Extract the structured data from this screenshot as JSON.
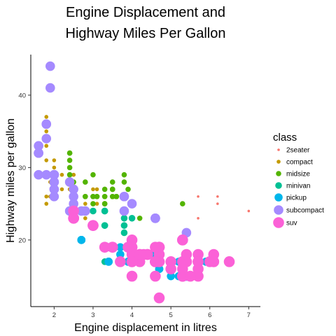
{
  "chart_data": {
    "type": "scatter",
    "title_lines": [
      "Engine Displacement and",
      "Highway Miles Per Gallon"
    ],
    "xlabel": "Engine displacement in litres",
    "ylabel": "Highway miles per gallon",
    "xlim": [
      1.4,
      7.3
    ],
    "ylim": [
      10.8,
      45.6
    ],
    "x_ticks": [
      "2",
      "3",
      "4",
      "5",
      "6",
      "7"
    ],
    "y_ticks": [
      "20",
      "30",
      "40"
    ],
    "grid": false,
    "legend_position": "right",
    "legend": {
      "title": "class",
      "entries": [
        "2seater",
        "compact",
        "midsize",
        "minivan",
        "pickup",
        "subcompact",
        "suv"
      ]
    },
    "colors": {
      "2seater": "#F8766D",
      "compact": "#C49A00",
      "midsize": "#53B400",
      "minivan": "#00C094",
      "pickup": "#00B6EB",
      "subcompact": "#A58AFF",
      "suv": "#FB61D7"
    },
    "sizes": {
      "2seater": 1,
      "compact": 2,
      "midsize": 3,
      "minivan": 4,
      "pickup": 5,
      "subcompact": 6,
      "suv": 7
    },
    "series": [
      {
        "name": "2seater",
        "points": [
          [
            5.7,
            26
          ],
          [
            5.7,
            23
          ],
          [
            6.2,
            26
          ],
          [
            6.2,
            25
          ],
          [
            7.0,
            24
          ]
        ]
      },
      {
        "name": "compact",
        "points": [
          [
            1.8,
            29
          ],
          [
            1.8,
            29
          ],
          [
            2.0,
            31
          ],
          [
            2.0,
            30
          ],
          [
            2.8,
            26
          ],
          [
            2.8,
            26
          ],
          [
            3.1,
            27
          ],
          [
            1.8,
            26
          ],
          [
            1.8,
            25
          ],
          [
            2.0,
            28
          ],
          [
            2.0,
            28
          ],
          [
            2.8,
            24
          ],
          [
            2.8,
            25
          ],
          [
            3.1,
            25
          ],
          [
            1.8,
            31
          ],
          [
            1.8,
            33
          ],
          [
            1.8,
            37
          ],
          [
            1.8,
            35
          ],
          [
            2.0,
            29
          ],
          [
            2.0,
            26
          ],
          [
            2.4,
            27
          ],
          [
            2.4,
            30
          ],
          [
            2.5,
            29
          ],
          [
            2.5,
            26
          ],
          [
            2.2,
            29
          ],
          [
            2.2,
            27
          ],
          [
            2.4,
            31
          ],
          [
            2.4,
            32
          ],
          [
            3.0,
            27
          ],
          [
            3.0,
            26
          ],
          [
            3.3,
            26
          ],
          [
            1.9,
            28
          ],
          [
            2.0,
            29
          ],
          [
            2.5,
            29
          ],
          [
            2.8,
            23
          ],
          [
            2.0,
            27
          ],
          [
            1.9,
            26
          ],
          [
            2.8,
            24
          ],
          [
            2.8,
            24
          ],
          [
            2.4,
            29
          ]
        ]
      },
      {
        "name": "midsize",
        "points": [
          [
            2.8,
            24
          ],
          [
            3.1,
            26
          ],
          [
            4.2,
            23
          ],
          [
            2.8,
            26
          ],
          [
            3.3,
            26
          ],
          [
            3.3,
            27
          ],
          [
            3.3,
            26
          ],
          [
            3.3,
            25
          ],
          [
            3.8,
            26
          ],
          [
            3.8,
            26
          ],
          [
            3.8,
            28
          ],
          [
            2.4,
            30
          ],
          [
            2.4,
            31
          ],
          [
            3.0,
            26
          ],
          [
            3.5,
            26
          ],
          [
            2.5,
            26
          ],
          [
            2.5,
            27
          ],
          [
            3.5,
            27
          ],
          [
            3.5,
            26
          ],
          [
            2.4,
            32
          ],
          [
            2.4,
            32
          ],
          [
            3.1,
            26
          ],
          [
            3.5,
            27
          ],
          [
            3.6,
            26
          ],
          [
            3.6,
            26
          ],
          [
            2.5,
            28
          ],
          [
            2.5,
            27
          ],
          [
            3.3,
            25
          ],
          [
            3.3,
            25
          ],
          [
            4.0,
            25
          ],
          [
            4.0,
            25
          ],
          [
            5.3,
            25
          ],
          [
            3.0,
            26
          ],
          [
            3.5,
            28
          ],
          [
            3.5,
            27
          ],
          [
            2.4,
            29
          ],
          [
            2.4,
            29
          ],
          [
            2.8,
            28
          ],
          [
            2.8,
            24
          ],
          [
            1.8,
            29
          ],
          [
            2.0,
            28
          ],
          [
            2.8,
            26
          ],
          [
            3.0,
            29
          ],
          [
            3.6,
            26
          ],
          [
            3.0,
            25
          ],
          [
            3.8,
            29
          ],
          [
            3.8,
            24
          ],
          [
            3.9,
            27
          ],
          [
            2.5,
            25
          ],
          [
            3.0,
            24
          ],
          [
            4.0,
            23
          ],
          [
            3.6,
            26
          ]
        ]
      },
      {
        "name": "minivan",
        "points": [
          [
            2.4,
            24
          ],
          [
            3.0,
            24
          ],
          [
            3.3,
            22
          ],
          [
            3.3,
            22
          ],
          [
            3.3,
            24
          ],
          [
            3.3,
            24
          ],
          [
            3.3,
            17
          ],
          [
            3.8,
            22
          ],
          [
            3.8,
            21
          ],
          [
            3.8,
            23
          ],
          [
            4.0,
            23
          ]
        ]
      },
      {
        "name": "pickup",
        "points": [
          [
            3.7,
            19
          ],
          [
            3.7,
            18
          ],
          [
            3.9,
            17
          ],
          [
            3.9,
            17
          ],
          [
            4.7,
            19
          ],
          [
            4.7,
            19
          ],
          [
            4.7,
            12
          ],
          [
            5.2,
            17
          ],
          [
            5.2,
            15
          ],
          [
            2.7,
            20
          ],
          [
            2.7,
            20
          ],
          [
            2.7,
            20
          ],
          [
            3.4,
            19
          ],
          [
            3.4,
            17
          ],
          [
            4.0,
            20
          ],
          [
            4.0,
            17
          ],
          [
            4.7,
            17
          ],
          [
            4.7,
            17
          ],
          [
            4.7,
            16
          ],
          [
            4.7,
            18
          ],
          [
            5.7,
            17
          ],
          [
            5.9,
            17
          ],
          [
            4.6,
            18
          ],
          [
            5.4,
            15
          ],
          [
            5.4,
            17
          ],
          [
            3.4,
            17
          ],
          [
            4.0,
            19
          ],
          [
            4.0,
            15
          ],
          [
            4.7,
            17
          ],
          [
            5.7,
            16
          ],
          [
            5.0,
            15
          ],
          [
            4.7,
            16
          ],
          [
            4.7,
            16
          ],
          [
            4.6,
            17
          ]
        ]
      },
      {
        "name": "subcompact",
        "points": [
          [
            1.6,
            33
          ],
          [
            1.6,
            32
          ],
          [
            1.6,
            32
          ],
          [
            1.6,
            29
          ],
          [
            1.6,
            32
          ],
          [
            1.8,
            34
          ],
          [
            1.8,
            36
          ],
          [
            1.8,
            36
          ],
          [
            2.0,
            29
          ],
          [
            2.0,
            26
          ],
          [
            1.9,
            41
          ],
          [
            1.9,
            44
          ],
          [
            2.0,
            29
          ],
          [
            2.0,
            29
          ],
          [
            2.5,
            27
          ],
          [
            2.5,
            25
          ],
          [
            2.0,
            28
          ],
          [
            2.0,
            27
          ],
          [
            2.0,
            28
          ],
          [
            2.8,
            24
          ],
          [
            3.8,
            26
          ],
          [
            3.8,
            26
          ],
          [
            3.8,
            24
          ],
          [
            4.0,
            25
          ],
          [
            4.6,
            23
          ],
          [
            4.6,
            23
          ],
          [
            4.6,
            23
          ],
          [
            5.4,
            21
          ],
          [
            5.4,
            15
          ],
          [
            2.4,
            28
          ],
          [
            2.5,
            26
          ],
          [
            2.0,
            27
          ],
          [
            2.4,
            24
          ],
          [
            2.7,
            24
          ],
          [
            1.8,
            29
          ]
        ]
      },
      {
        "name": "suv",
        "points": [
          [
            5.3,
            20
          ],
          [
            5.3,
            15
          ],
          [
            5.3,
            20
          ],
          [
            5.7,
            17
          ],
          [
            6.0,
            17
          ],
          [
            5.3,
            17
          ],
          [
            5.3,
            15
          ],
          [
            5.7,
            15
          ],
          [
            6.5,
            17
          ],
          [
            4.0,
            19
          ],
          [
            4.0,
            17
          ],
          [
            4.0,
            20
          ],
          [
            4.0,
            17
          ],
          [
            4.2,
            17
          ],
          [
            4.6,
            15
          ],
          [
            4.6,
            17
          ],
          [
            5.0,
            17
          ],
          [
            5.4,
            17
          ],
          [
            4.7,
            17
          ],
          [
            4.7,
            19
          ],
          [
            5.7,
            18
          ],
          [
            6.1,
            18
          ],
          [
            4.7,
            19
          ],
          [
            4.7,
            18
          ],
          [
            5.7,
            17
          ],
          [
            6.1,
            17
          ],
          [
            2.5,
            23
          ],
          [
            2.5,
            23
          ],
          [
            3.0,
            22
          ],
          [
            3.3,
            19
          ],
          [
            4.0,
            19
          ],
          [
            4.2,
            18
          ],
          [
            4.6,
            17
          ],
          [
            3.7,
            17
          ],
          [
            4.0,
            18
          ],
          [
            4.0,
            17
          ],
          [
            4.4,
            18
          ],
          [
            5.0,
            16
          ],
          [
            4.6,
            17
          ],
          [
            5.4,
            17
          ],
          [
            3.0,
            22
          ],
          [
            4.2,
            18
          ],
          [
            4.3,
            18
          ],
          [
            3.9,
            19
          ],
          [
            4.7,
            19
          ],
          [
            4.7,
            17
          ],
          [
            5.7,
            16
          ],
          [
            5.7,
            17
          ],
          [
            6.1,
            17
          ],
          [
            5.3,
            16
          ],
          [
            5.3,
            15
          ],
          [
            4.7,
            12
          ],
          [
            2.5,
            24
          ],
          [
            2.5,
            23
          ],
          [
            5.4,
            18
          ],
          [
            4.0,
            15
          ],
          [
            4.6,
            19
          ],
          [
            5.5,
            15
          ],
          [
            4.4,
            18
          ],
          [
            3.5,
            19
          ],
          [
            3.5,
            19
          ],
          [
            4.6,
            17
          ]
        ]
      }
    ]
  }
}
